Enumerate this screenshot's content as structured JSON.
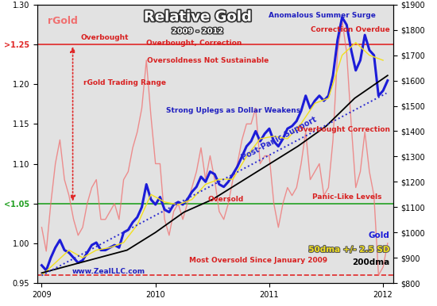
{
  "chart_data": {
    "type": "line",
    "title": "Relative Gold",
    "subtitle": "2009 - 2012",
    "xlim": [
      2008.96,
      2012.09
    ],
    "xticks": [
      2009,
      2010,
      2011,
      2012
    ],
    "ylim": [
      0.95,
      1.3
    ],
    "yticks": [
      {
        "value": 0.95,
        "label": "0.95"
      },
      {
        "value": 1.0,
        "label": "1.00"
      },
      {
        "value": 1.05,
        "label": "<1.05"
      },
      {
        "value": 1.1,
        "label": "1.10"
      },
      {
        "value": 1.15,
        "label": "1.15"
      },
      {
        "value": 1.2,
        "label": "1.20"
      },
      {
        "value": 1.25,
        "label": ">1.25"
      },
      {
        "value": 1.3,
        "label": "1.30"
      }
    ],
    "y2lim": [
      800,
      1900
    ],
    "y2ticks": [
      {
        "value": 800,
        "label": "$800"
      },
      {
        "value": 900,
        "label": "$900"
      },
      {
        "value": 1000,
        "label": "$1000"
      },
      {
        "value": 1100,
        "label": "$1100"
      },
      {
        "value": 1200,
        "label": "$1200"
      },
      {
        "value": 1300,
        "label": "$1300"
      },
      {
        "value": 1400,
        "label": "$1400"
      },
      {
        "value": 1500,
        "label": "$1500"
      },
      {
        "value": 1600,
        "label": "$1600"
      },
      {
        "value": 1700,
        "label": "$1700"
      },
      {
        "value": 1800,
        "label": "$1800"
      },
      {
        "value": 1900,
        "label": "$1900"
      }
    ],
    "grid": false,
    "hlines": [
      {
        "value": 1.25,
        "color": "#e02828",
        "line_style": "solid"
      },
      {
        "value": 1.05,
        "color": "#22a022",
        "line_style": "solid"
      },
      {
        "value": 0.96,
        "color": "#e02828",
        "line_style": "dashed"
      }
    ],
    "x": [
      2009.0,
      2009.04,
      2009.08,
      2009.12,
      2009.16,
      2009.2,
      2009.24,
      2009.28,
      2009.32,
      2009.36,
      2009.4,
      2009.44,
      2009.48,
      2009.52,
      2009.56,
      2009.6,
      2009.64,
      2009.68,
      2009.72,
      2009.76,
      2009.8,
      2009.84,
      2009.88,
      2009.92,
      2009.96,
      2010.0,
      2010.04,
      2010.08,
      2010.12,
      2010.16,
      2010.2,
      2010.24,
      2010.28,
      2010.32,
      2010.36,
      2010.4,
      2010.44,
      2010.48,
      2010.52,
      2010.56,
      2010.6,
      2010.64,
      2010.68,
      2010.72,
      2010.76,
      2010.8,
      2010.84,
      2010.88,
      2010.92,
      2010.96,
      2011.0,
      2011.04,
      2011.08,
      2011.12,
      2011.16,
      2011.2,
      2011.24,
      2011.28,
      2011.32,
      2011.36,
      2011.4,
      2011.44,
      2011.48,
      2011.52,
      2011.56,
      2011.6,
      2011.64,
      2011.68,
      2011.72,
      2011.76,
      2011.8,
      2011.84,
      2011.88,
      2011.92,
      2011.96,
      2012.0,
      2012.04
    ],
    "series": [
      {
        "name": "rGold",
        "color": "#f07070",
        "axis": "y",
        "line_style": "solid",
        "values": [
          1.02,
          0.99,
          1.05,
          1.1,
          1.13,
          1.08,
          1.06,
          1.03,
          1.01,
          1.02,
          1.05,
          1.07,
          1.08,
          1.03,
          1.03,
          1.04,
          1.05,
          1.03,
          1.08,
          1.09,
          1.12,
          1.14,
          1.17,
          1.23,
          1.16,
          1.1,
          1.1,
          1.03,
          1.01,
          1.04,
          1.05,
          1.03,
          1.05,
          1.07,
          1.09,
          1.12,
          1.08,
          1.11,
          1.08,
          1.04,
          1.03,
          1.05,
          1.08,
          1.1,
          1.13,
          1.15,
          1.15,
          1.17,
          1.1,
          1.11,
          1.11,
          1.05,
          1.02,
          1.05,
          1.07,
          1.06,
          1.07,
          1.1,
          1.14,
          1.08,
          1.09,
          1.1,
          1.06,
          1.07,
          1.13,
          1.24,
          1.28,
          1.24,
          1.15,
          1.07,
          1.09,
          1.14,
          1.09,
          1.06,
          0.96,
          0.97,
          1.0
        ]
      },
      {
        "name": "Gold",
        "color": "#1c1cd8",
        "axis": "y2",
        "line_style": "solid",
        "values": [
          870,
          850,
          900,
          940,
          970,
          930,
          920,
          900,
          880,
          890,
          920,
          950,
          960,
          930,
          930,
          940,
          950,
          940,
          1000,
          1010,
          1040,
          1060,
          1100,
          1190,
          1130,
          1110,
          1140,
          1090,
          1080,
          1110,
          1120,
          1110,
          1130,
          1160,
          1180,
          1220,
          1200,
          1240,
          1230,
          1190,
          1180,
          1200,
          1230,
          1260,
          1300,
          1340,
          1360,
          1400,
          1360,
          1390,
          1410,
          1360,
          1340,
          1370,
          1410,
          1420,
          1440,
          1480,
          1540,
          1490,
          1520,
          1540,
          1520,
          1540,
          1620,
          1760,
          1850,
          1820,
          1720,
          1640,
          1680,
          1780,
          1720,
          1700,
          1540,
          1560,
          1600
        ]
      },
      {
        "name": "50dma +/- 2.5 SD",
        "color": "#f2e01e",
        "axis": "y2",
        "line_style": "solid",
        "x": [
          2009.0,
          2009.12,
          2009.24,
          2009.36,
          2009.48,
          2009.6,
          2009.72,
          2009.84,
          2009.96,
          2010.08,
          2010.2,
          2010.32,
          2010.44,
          2010.56,
          2010.68,
          2010.8,
          2010.92,
          2011.04,
          2011.16,
          2011.28,
          2011.4,
          2011.52,
          2011.64,
          2011.76,
          2011.88,
          2012.0
        ],
        "values": [
          830,
          880,
          930,
          900,
          930,
          940,
          960,
          1030,
          1150,
          1120,
          1110,
          1130,
          1190,
          1210,
          1210,
          1300,
          1370,
          1380,
          1370,
          1430,
          1510,
          1530,
          1700,
          1750,
          1700,
          1680
        ]
      },
      {
        "name": "200dma",
        "color": "#000000",
        "axis": "y2",
        "line_style": "solid",
        "x": [
          2009.0,
          2009.25,
          2009.5,
          2009.75,
          2010.0,
          2010.25,
          2010.5,
          2010.75,
          2011.0,
          2011.25,
          2011.5,
          2011.75,
          2012.04
        ],
        "values": [
          840,
          870,
          900,
          930,
          1000,
          1080,
          1130,
          1200,
          1270,
          1340,
          1420,
          1530,
          1620
        ]
      },
      {
        "name": "Post-Panic Support",
        "color": "#2a2ad0",
        "axis": "y2",
        "line_style": "dotted",
        "x": [
          2009.0,
          2012.03
        ],
        "values": [
          830,
          1550
        ]
      }
    ],
    "annotations": [
      {
        "text": "Overbought",
        "color": "#d82020"
      },
      {
        "text": "rGold Trading Range",
        "color": "#d82020"
      },
      {
        "text": "Overbought, Correction",
        "color": "#d82020"
      },
      {
        "text": "Oversoldness Not Sustainable",
        "color": "#d82020"
      },
      {
        "text": "Strong Uplegs as Dollar Weakens",
        "color": "#2020c0"
      },
      {
        "text": "Anomalous Summer Surge",
        "color": "#2020c0"
      },
      {
        "text": "Correction Overdue",
        "color": "#d82020"
      },
      {
        "text": "Overbought Correction",
        "color": "#d82020"
      },
      {
        "text": "Oversold",
        "color": "#d82020"
      },
      {
        "text": "Panic-Like Levels",
        "color": "#d82020"
      },
      {
        "text": "Most Oversold Since January 2009",
        "color": "#d82020"
      },
      {
        "text": "www.ZealLLC.com",
        "color": "#2020c0"
      }
    ]
  }
}
